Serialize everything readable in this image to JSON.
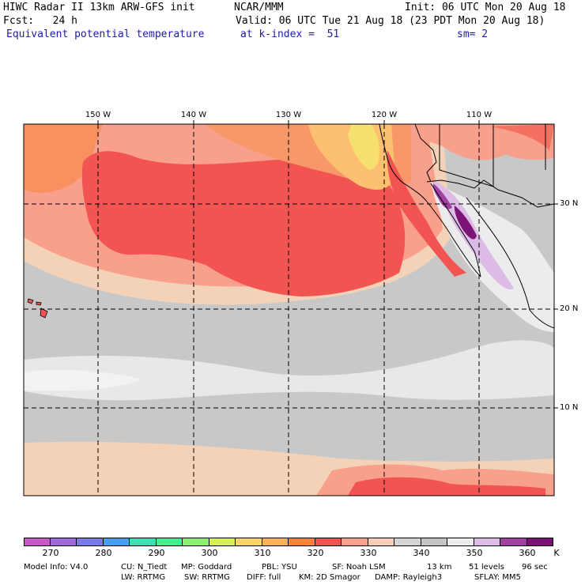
{
  "header": {
    "model": "HIWC Radar II 13km ARW-GFS init",
    "org": "NCAR/MMM",
    "init": "Init: 06 UTC Mon 20 Aug 18",
    "fcst": "Fcst:   24 h",
    "valid": "Valid: 06 UTC Tue 21 Aug 18 (23 PDT Mon 20 Aug 18)",
    "field": "Equivalent potential temperature",
    "level": "at k-index =  51",
    "smooth": "sm= 2"
  },
  "map": {
    "lon_labels": [
      "150 W",
      "140 W",
      "130 W",
      "120 W",
      "110 W"
    ],
    "lat_labels": [
      "30 N",
      "20 N",
      "10 N"
    ]
  },
  "colorbar": {
    "colors": [
      "#c858c8",
      "#9e6ad6",
      "#7a7ae6",
      "#4a9ef0",
      "#3ce0b4",
      "#44f08c",
      "#8cf070",
      "#d8f058",
      "#fcd46c",
      "#fcb060",
      "#f8843c",
      "#f45050",
      "#f8a08c",
      "#f8d0b8",
      "#d4d4d4",
      "#c4c4c4",
      "#ececec",
      "#dcbce4",
      "#a040a0",
      "#7c1478"
    ],
    "labels": [
      "270",
      "280",
      "290",
      "300",
      "310",
      "320",
      "330",
      "340",
      "350",
      "360"
    ],
    "unit": "K"
  },
  "footer": {
    "line1": [
      "Model Info: V4.0",
      "CU: N_Tiedt",
      "MP: Goddard",
      "PBL: YSU",
      "SF: Noah LSM",
      "13 km",
      "51 levels",
      "96 sec"
    ],
    "line2": [
      "LW: RRTMG",
      "SW: RRTMG",
      "DIFF: full",
      "KM: 2D Smagor",
      "DAMP: Rayleigh3",
      "SFLAY: MM5"
    ]
  }
}
